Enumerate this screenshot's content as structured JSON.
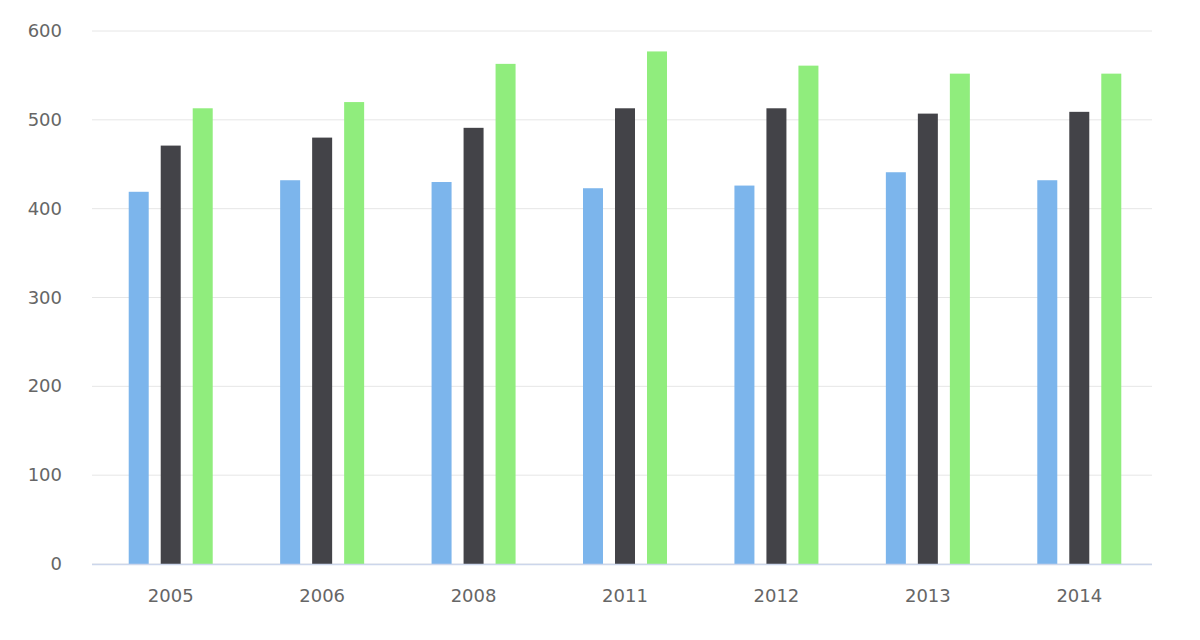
{
  "chart_data": {
    "type": "bar",
    "categories": [
      "2005",
      "2006",
      "2008",
      "2011",
      "2012",
      "2013",
      "2014"
    ],
    "series": [
      {
        "color": "#7cb5ec",
        "values": [
          419,
          432,
          430,
          423,
          426,
          441,
          432
        ]
      },
      {
        "color": "#434348",
        "values": [
          471,
          480,
          491,
          513,
          513,
          507,
          509
        ]
      },
      {
        "color": "#90ed7d",
        "values": [
          513,
          520,
          563,
          577,
          561,
          552,
          552
        ]
      }
    ],
    "ylim": [
      0,
      600
    ],
    "yticks": [
      0,
      100,
      200,
      300,
      400,
      500,
      600
    ],
    "grid": true
  }
}
